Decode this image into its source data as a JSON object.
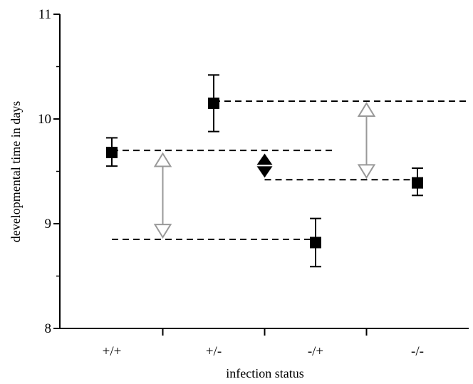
{
  "chart_data": {
    "type": "scatter",
    "xlabel": "infection status",
    "ylabel": "developmental time in days",
    "categories": [
      "+/+",
      "+/-",
      "-/+",
      "-/-"
    ],
    "ylim": [
      8,
      11
    ],
    "yticks": [
      8,
      9,
      10,
      11
    ],
    "grid": false,
    "points": [
      {
        "category": "+/+",
        "mean": 9.68,
        "lower": 9.55,
        "upper": 9.82
      },
      {
        "category": "+/-",
        "mean": 10.15,
        "lower": 9.88,
        "upper": 10.42
      },
      {
        "category": "-/+",
        "mean": 8.82,
        "lower": 8.59,
        "upper": 9.05
      },
      {
        "category": "-/-",
        "mean": 9.39,
        "lower": 9.27,
        "upper": 9.53
      }
    ],
    "reference_lines": [
      {
        "y": 9.7,
        "from": 0.0,
        "to": 2.2
      },
      {
        "y": 10.17,
        "from": 1.0,
        "to": 3.5
      },
      {
        "y": 8.85,
        "from": 0.0,
        "to": 2.0
      },
      {
        "y": 9.42,
        "from": 1.5,
        "to": 3.0
      }
    ],
    "comparison_arrows": [
      {
        "x": 0.5,
        "from": 8.87,
        "to": 9.67,
        "style": "open",
        "color": "#999999"
      },
      {
        "x": 2.5,
        "from": 9.44,
        "to": 10.15,
        "style": "open",
        "color": "#999999"
      },
      {
        "x": 1.5,
        "from": 9.44,
        "to": 9.67,
        "style": "filled",
        "color": "#000000"
      }
    ]
  },
  "colors": {
    "marker": "#000000",
    "open_arrow": "#999999",
    "filled_arrow": "#000000"
  }
}
